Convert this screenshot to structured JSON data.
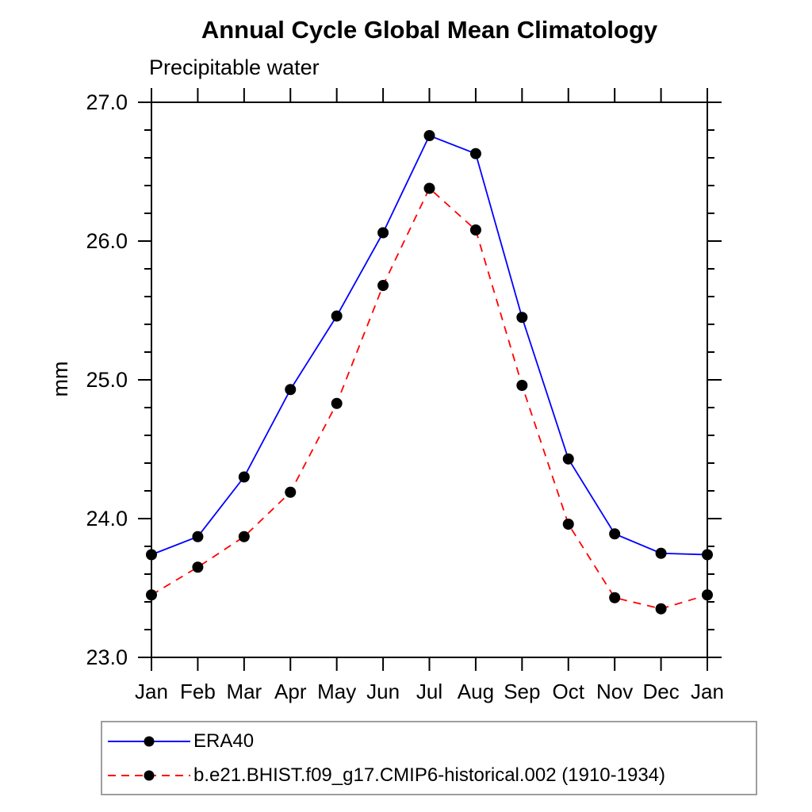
{
  "chart_data": {
    "type": "line",
    "title": "Annual Cycle Global Mean Climatology",
    "subtitle": "Precipitable water",
    "ylabel": "mm",
    "xlabel": "",
    "x": [
      "Jan",
      "Feb",
      "Mar",
      "Apr",
      "May",
      "Jun",
      "Jul",
      "Aug",
      "Sep",
      "Oct",
      "Nov",
      "Dec",
      "Jan"
    ],
    "ylim": [
      23.0,
      27.0
    ],
    "y_ticks": [
      23.0,
      24.0,
      25.0,
      26.0,
      27.0
    ],
    "y_tick_labels": [
      "23.0",
      "24.0",
      "25.0",
      "26.0",
      "27.0"
    ],
    "y_minor_step": 0.2,
    "grid": false,
    "legend_position": "bottom",
    "series": [
      {
        "name": "ERA40",
        "color": "#0000ff",
        "line_style": "solid",
        "marker": "filled-circle",
        "marker_color": "#000000",
        "values": [
          23.74,
          23.87,
          24.3,
          24.93,
          25.46,
          26.06,
          26.76,
          26.63,
          25.45,
          24.43,
          23.89,
          23.75,
          23.74
        ]
      },
      {
        "name": "b.e21.BHIST.f09_g17.CMIP6-historical.002 (1910-1934)",
        "color": "#ff0000",
        "line_style": "dashed",
        "marker": "filled-circle",
        "marker_color": "#000000",
        "values": [
          23.45,
          23.65,
          23.87,
          24.19,
          24.83,
          25.68,
          26.38,
          26.08,
          24.96,
          23.96,
          23.43,
          23.35,
          23.45
        ]
      }
    ]
  },
  "colors": {
    "axis": "#000000",
    "background": "#ffffff",
    "legend_border": "#9e9e9e"
  }
}
